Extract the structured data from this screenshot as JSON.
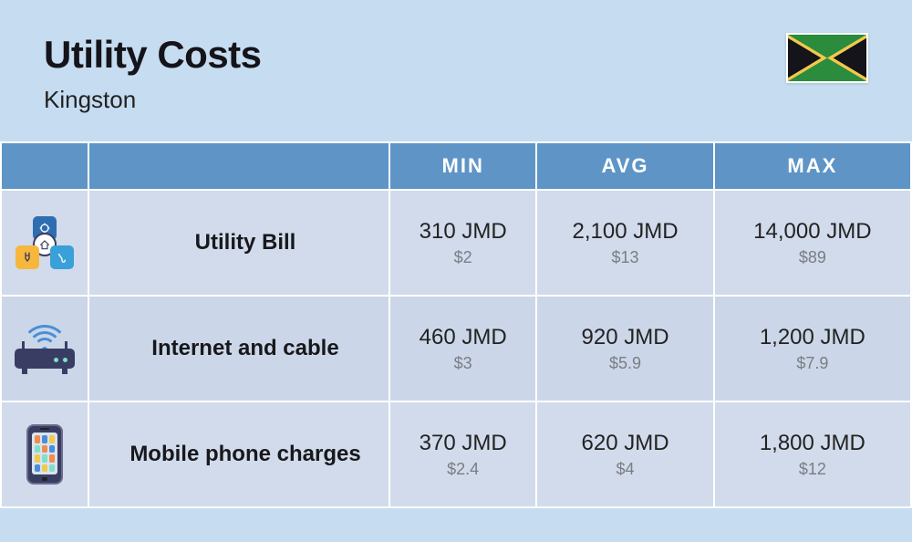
{
  "header": {
    "title": "Utility Costs",
    "subtitle": "Kingston",
    "flag": {
      "country": "Jamaica",
      "green": "#2a8c3c",
      "yellow": "#f2c94c",
      "black": "#14141a"
    }
  },
  "table": {
    "columns": [
      "MIN",
      "AVG",
      "MAX"
    ],
    "header_bg": "#5f94c6",
    "header_text": "#ffffff",
    "row_bg_odd": "#d1dbeb",
    "row_bg_even": "#cbd7e8",
    "border_color": "#ffffff",
    "rows": [
      {
        "icon": "utility-bill-icon",
        "label": "Utility Bill",
        "min": {
          "primary": "310 JMD",
          "secondary": "$2"
        },
        "avg": {
          "primary": "2,100 JMD",
          "secondary": "$13"
        },
        "max": {
          "primary": "14,000 JMD",
          "secondary": "$89"
        }
      },
      {
        "icon": "router-icon",
        "label": "Internet and cable",
        "min": {
          "primary": "460 JMD",
          "secondary": "$3"
        },
        "avg": {
          "primary": "920 JMD",
          "secondary": "$5.9"
        },
        "max": {
          "primary": "1,200 JMD",
          "secondary": "$7.9"
        }
      },
      {
        "icon": "mobile-phone-icon",
        "label": "Mobile phone charges",
        "min": {
          "primary": "370 JMD",
          "secondary": "$2.4"
        },
        "avg": {
          "primary": "620 JMD",
          "secondary": "$4"
        },
        "max": {
          "primary": "1,800 JMD",
          "secondary": "$12"
        }
      }
    ]
  },
  "phone_app_colors": [
    "#f28b4b",
    "#4a8ed8",
    "#f2c94c",
    "#7fe0c8",
    "#f28b4b",
    "#4a8ed8",
    "#f2c94c",
    "#7fe0c8",
    "#f28b4b",
    "#4a8ed8",
    "#f2c94c",
    "#7fe0c8"
  ],
  "background_color": "#c6dcf0"
}
